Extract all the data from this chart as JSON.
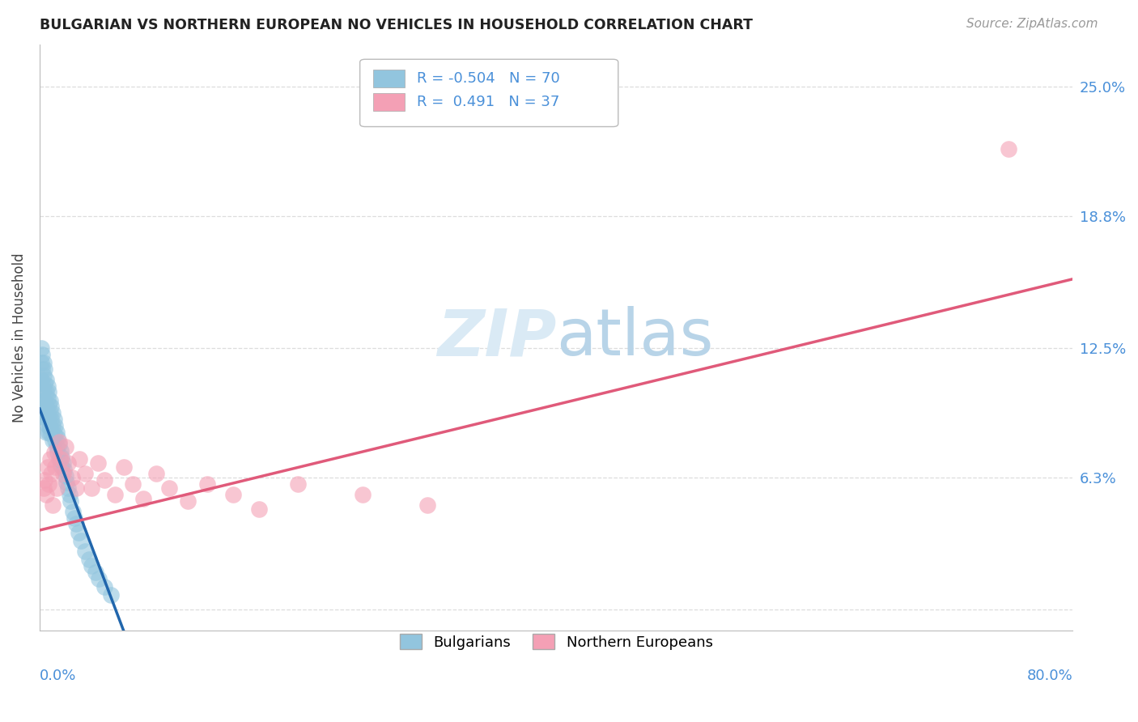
{
  "title": "BULGARIAN VS NORTHERN EUROPEAN NO VEHICLES IN HOUSEHOLD CORRELATION CHART",
  "source": "Source: ZipAtlas.com",
  "ylabel": "No Vehicles in Household",
  "y_ticks": [
    0.0,
    0.063,
    0.125,
    0.188,
    0.25
  ],
  "y_tick_labels": [
    "",
    "6.3%",
    "12.5%",
    "18.8%",
    "25.0%"
  ],
  "xlim": [
    0.0,
    0.8
  ],
  "ylim": [
    -0.01,
    0.27
  ],
  "bulgarian_R": -0.504,
  "bulgarian_N": 70,
  "northern_R": 0.491,
  "northern_N": 37,
  "legend_label_1": "Bulgarians",
  "legend_label_2": "Northern Europeans",
  "bulgarian_color": "#92c5de",
  "northern_color": "#f4a0b5",
  "bulgarian_line_color": "#2166ac",
  "northern_line_color": "#e05a7a",
  "watermark_color": "#daeaf5",
  "background_color": "#ffffff",
  "grid_color": "#dddddd",
  "bulgarian_x": [
    0.001,
    0.001,
    0.001,
    0.002,
    0.002,
    0.002,
    0.002,
    0.003,
    0.003,
    0.003,
    0.003,
    0.003,
    0.004,
    0.004,
    0.004,
    0.004,
    0.005,
    0.005,
    0.005,
    0.005,
    0.005,
    0.006,
    0.006,
    0.006,
    0.006,
    0.007,
    0.007,
    0.007,
    0.007,
    0.008,
    0.008,
    0.008,
    0.009,
    0.009,
    0.009,
    0.01,
    0.01,
    0.01,
    0.011,
    0.011,
    0.012,
    0.012,
    0.013,
    0.013,
    0.014,
    0.014,
    0.015,
    0.015,
    0.016,
    0.016,
    0.017,
    0.018,
    0.019,
    0.02,
    0.021,
    0.022,
    0.023,
    0.024,
    0.026,
    0.027,
    0.028,
    0.03,
    0.032,
    0.035,
    0.038,
    0.04,
    0.043,
    0.046,
    0.05,
    0.055
  ],
  "bulgarian_y": [
    0.125,
    0.118,
    0.11,
    0.122,
    0.115,
    0.108,
    0.1,
    0.118,
    0.112,
    0.105,
    0.098,
    0.092,
    0.115,
    0.108,
    0.1,
    0.094,
    0.11,
    0.104,
    0.097,
    0.091,
    0.085,
    0.107,
    0.101,
    0.094,
    0.088,
    0.104,
    0.098,
    0.091,
    0.085,
    0.1,
    0.094,
    0.087,
    0.097,
    0.091,
    0.084,
    0.094,
    0.088,
    0.081,
    0.091,
    0.084,
    0.088,
    0.081,
    0.085,
    0.078,
    0.082,
    0.075,
    0.079,
    0.072,
    0.076,
    0.069,
    0.073,
    0.07,
    0.067,
    0.064,
    0.061,
    0.058,
    0.055,
    0.052,
    0.047,
    0.044,
    0.041,
    0.037,
    0.033,
    0.028,
    0.024,
    0.021,
    0.018,
    0.015,
    0.011,
    0.007
  ],
  "northern_x": [
    0.003,
    0.004,
    0.005,
    0.006,
    0.007,
    0.008,
    0.009,
    0.01,
    0.011,
    0.012,
    0.013,
    0.015,
    0.016,
    0.018,
    0.02,
    0.022,
    0.025,
    0.028,
    0.031,
    0.035,
    0.04,
    0.045,
    0.05,
    0.058,
    0.065,
    0.072,
    0.08,
    0.09,
    0.1,
    0.115,
    0.13,
    0.15,
    0.17,
    0.2,
    0.25,
    0.3,
    0.75
  ],
  "northern_y": [
    0.058,
    0.062,
    0.055,
    0.068,
    0.06,
    0.072,
    0.065,
    0.05,
    0.075,
    0.068,
    0.058,
    0.08,
    0.072,
    0.065,
    0.078,
    0.07,
    0.063,
    0.058,
    0.072,
    0.065,
    0.058,
    0.07,
    0.062,
    0.055,
    0.068,
    0.06,
    0.053,
    0.065,
    0.058,
    0.052,
    0.06,
    0.055,
    0.048,
    0.06,
    0.055,
    0.05,
    0.22
  ],
  "bg_line_x0": 0.0,
  "bg_line_x1": 0.065,
  "bg_line_y0": 0.096,
  "bg_line_y1": -0.01,
  "ne_line_x0": 0.0,
  "ne_line_x1": 0.8,
  "ne_line_y0": 0.038,
  "ne_line_y1": 0.158
}
